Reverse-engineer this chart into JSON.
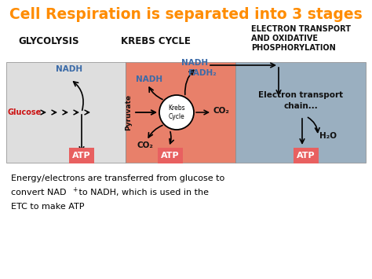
{
  "title": "Cell Respiration is separated into 3 stages",
  "title_color": "#FF8C00",
  "title_fontsize": 13.5,
  "bg_color": "#FFFFFF",
  "stage1_label": "GLYCOLYSIS",
  "stage2_label": "KREBS CYCLE",
  "stage3_label": "ELECTRON TRANSPORT\nAND OXIDATIVE\nPHOSPHORYLATION",
  "stage1_bg": "#DEDEDE",
  "stage2_bg": "#E8806A",
  "stage3_bg": "#9AAFC0",
  "label_color_blue": "#3A6AA8",
  "label_color_red": "#CC1111",
  "label_color_black": "#111111",
  "atp_bg": "#E86060",
  "atp_text": "ATP",
  "nadh_text": "NADH",
  "fadh2_text": "FADH₂",
  "co2_text": "CO₂",
  "glucose_text": "Glucose",
  "pyruvate_text": "Pyruvate",
  "krebs_text": "Krebs\nCycle",
  "etc_text": "Electron transport\nchain...",
  "h2o_text": "H₂O",
  "bottom_line1": "Energy/electrons are transferred from glucose to",
  "bottom_line2a": "convert NAD",
  "bottom_line2b": " to NADH, which is used in the",
  "bottom_line3": "ETC to make ATP"
}
